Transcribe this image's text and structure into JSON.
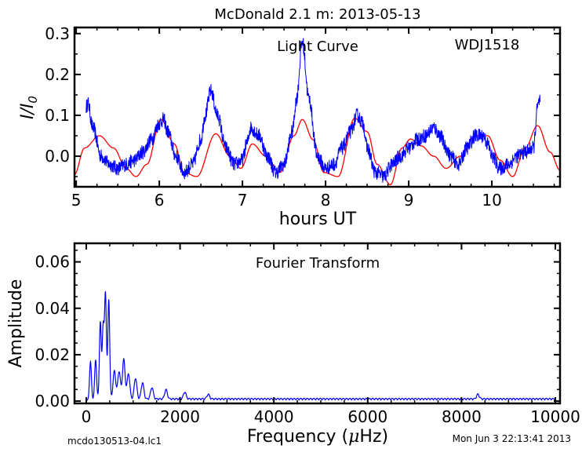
{
  "figure": {
    "title": "McDonald 2.1 m:  2013-05-13",
    "footer_left": "mcdo130513-04.lc1",
    "footer_right": "Mon Jun  3 22:13:41 2013"
  },
  "colors": {
    "data": "#0000ff",
    "model": "#ff0000",
    "axis": "#000000"
  },
  "chart_data": [
    {
      "type": "line",
      "panel": "light-curve",
      "annotation_left": "Light Curve",
      "annotation_right": "WDJ1518",
      "xlabel": "hours UT",
      "ylabel": "I/I0",
      "ylabel_main": "I/I",
      "ylabel_sub": "0",
      "xlim": [
        4.98,
        10.82
      ],
      "ylim": [
        -0.075,
        0.315
      ],
      "xticks": [
        5,
        6,
        7,
        8,
        9,
        10
      ],
      "xtick_labels": [
        "5",
        "6",
        "7",
        "8",
        "9",
        "10"
      ],
      "yticks": [
        0.0,
        0.1,
        0.2,
        0.3
      ],
      "ytick_labels": [
        "0.0",
        "0.1",
        "0.2",
        "0.3"
      ],
      "series": [
        {
          "color": "#0000ff",
          "x_range": [
            5.12,
            10.58
          ],
          "x": [
            5.12,
            5.14,
            5.2,
            5.3,
            5.4,
            5.5,
            5.6,
            5.7,
            5.8,
            5.9,
            6.0,
            6.05,
            6.1,
            6.2,
            6.3,
            6.4,
            6.5,
            6.55,
            6.62,
            6.7,
            6.8,
            6.9,
            7.0,
            7.05,
            7.1,
            7.2,
            7.3,
            7.4,
            7.5,
            7.6,
            7.65,
            7.72,
            7.8,
            7.9,
            8.0,
            8.1,
            8.2,
            8.3,
            8.38,
            8.45,
            8.5,
            8.6,
            8.7,
            8.8,
            8.9,
            9.0,
            9.1,
            9.2,
            9.3,
            9.38,
            9.45,
            9.5,
            9.6,
            9.7,
            9.8,
            9.9,
            9.95,
            10.0,
            10.1,
            10.2,
            10.3,
            10.4,
            10.5,
            10.55,
            10.58
          ],
          "y": [
            0.12,
            0.13,
            0.07,
            0.0,
            -0.02,
            -0.03,
            -0.02,
            -0.01,
            0.01,
            0.04,
            0.08,
            0.09,
            0.06,
            0.0,
            -0.04,
            -0.02,
            0.04,
            0.1,
            0.16,
            0.1,
            0.02,
            -0.02,
            -0.01,
            0.03,
            0.07,
            0.05,
            0.0,
            -0.04,
            -0.02,
            0.06,
            0.14,
            0.28,
            0.14,
            0.0,
            -0.03,
            -0.02,
            0.02,
            0.06,
            0.1,
            0.08,
            0.02,
            -0.04,
            -0.05,
            -0.02,
            0.0,
            0.02,
            0.04,
            0.05,
            0.07,
            0.05,
            0.02,
            0.0,
            -0.02,
            0.02,
            0.05,
            0.05,
            0.03,
            0.0,
            -0.03,
            -0.02,
            0.0,
            0.01,
            0.02,
            0.12,
            0.14
          ],
          "noise": 0.018
        },
        {
          "color": "#ff0000",
          "x": [
            4.98,
            5.1,
            5.28,
            5.45,
            5.6,
            5.72,
            5.85,
            6.02,
            6.18,
            6.3,
            6.45,
            6.68,
            6.85,
            6.98,
            7.12,
            7.28,
            7.45,
            7.62,
            7.72,
            7.85,
            7.98,
            8.15,
            8.35,
            8.5,
            8.62,
            8.78,
            8.92,
            9.02,
            9.15,
            9.3,
            9.45,
            9.62,
            9.8,
            9.95,
            10.1,
            10.25,
            10.4,
            10.55,
            10.7,
            10.82
          ],
          "y": [
            -0.045,
            0.02,
            0.05,
            0.02,
            -0.03,
            -0.05,
            -0.02,
            0.09,
            0.03,
            -0.04,
            -0.05,
            0.055,
            0.0,
            -0.03,
            0.03,
            0.0,
            -0.04,
            0.05,
            0.09,
            0.04,
            -0.04,
            -0.05,
            0.093,
            0.06,
            -0.02,
            -0.07,
            0.02,
            0.042,
            0.025,
            0.0,
            -0.03,
            0.0,
            0.05,
            0.05,
            -0.01,
            -0.05,
            0.02,
            0.075,
            0.01,
            -0.035
          ]
        }
      ]
    },
    {
      "type": "line",
      "panel": "fourier",
      "annotation": "Fourier Transform",
      "xlabel": "Frequency (μHz)",
      "xlabel_prefix": "Frequency (",
      "xlabel_mu": "μ",
      "xlabel_suffix": "Hz)",
      "ylabel": "Amplitude",
      "xlim": [
        -250,
        10100
      ],
      "ylim": [
        -0.001,
        0.068
      ],
      "xticks": [
        0,
        2000,
        4000,
        6000,
        8000,
        10000
      ],
      "xtick_labels": [
        "0",
        "2000",
        "4000",
        "6000",
        "8000",
        "10000"
      ],
      "yticks": [
        0.0,
        0.02,
        0.04,
        0.06
      ],
      "ytick_labels": [
        "0.00",
        "0.02",
        "0.04",
        "0.06"
      ],
      "series": [
        {
          "color": "#0000ff",
          "x_range": [
            0,
            10000
          ],
          "peaks": [
            {
              "f": 90,
              "a": 0.016
            },
            {
              "f": 200,
              "a": 0.017
            },
            {
              "f": 300,
              "a": 0.033
            },
            {
              "f": 360,
              "a": 0.031
            },
            {
              "f": 410,
              "a": 0.045
            },
            {
              "f": 480,
              "a": 0.043
            },
            {
              "f": 600,
              "a": 0.012
            },
            {
              "f": 700,
              "a": 0.012
            },
            {
              "f": 800,
              "a": 0.017
            },
            {
              "f": 900,
              "a": 0.011
            },
            {
              "f": 1050,
              "a": 0.009
            },
            {
              "f": 1200,
              "a": 0.007
            },
            {
              "f": 1400,
              "a": 0.005
            },
            {
              "f": 1700,
              "a": 0.004
            },
            {
              "f": 2100,
              "a": 0.003
            },
            {
              "f": 2600,
              "a": 0.002
            },
            {
              "f": 8350,
              "a": 0.002
            }
          ],
          "baseline": 0.0012
        }
      ]
    }
  ]
}
